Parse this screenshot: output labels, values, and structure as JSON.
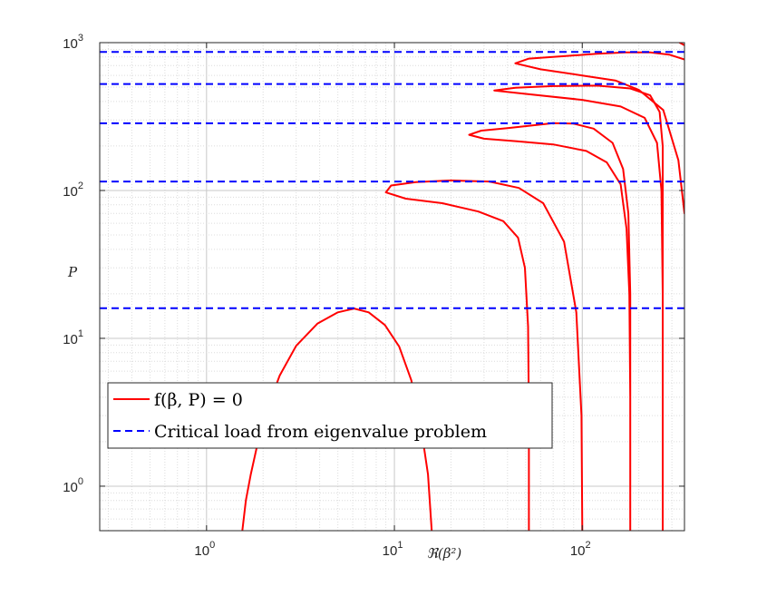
{
  "chart_data": {
    "type": "line",
    "title": "",
    "xlabel": "ℜ(β²)",
    "ylabel": "P",
    "xscale": "log",
    "yscale": "log",
    "xlim": [
      0.27,
      350
    ],
    "ylim": [
      0.5,
      1000
    ],
    "grid": "on (major and minor, dotted)",
    "legend_placement": "lower-left",
    "x_ticks": [
      {
        "base": "10",
        "exp": "0",
        "value": 1
      },
      {
        "base": "10",
        "exp": "1",
        "value": 10
      },
      {
        "base": "10",
        "exp": "2",
        "value": 100
      }
    ],
    "y_ticks": [
      {
        "base": "10",
        "exp": "0",
        "value": 1
      },
      {
        "base": "10",
        "exp": "1",
        "value": 10
      },
      {
        "base": "10",
        "exp": "2",
        "value": 100
      },
      {
        "base": "10",
        "exp": "3",
        "value": 1000
      }
    ],
    "series": [
      {
        "name": "f(β, P) = 0",
        "color": "#ff0000",
        "style": "solid",
        "branches": [
          [
            [
              1.55,
              0.5
            ],
            [
              1.62,
              0.8
            ],
            [
              1.72,
              1.2
            ],
            [
              1.88,
              2.0
            ],
            [
              2.1,
              3.3
            ],
            [
              2.45,
              5.6
            ],
            [
              3.0,
              8.9
            ],
            [
              3.9,
              12.6
            ],
            [
              5.0,
              15.0
            ],
            [
              6.1,
              15.9
            ],
            [
              7.3,
              15.0
            ],
            [
              8.9,
              12.3
            ],
            [
              10.6,
              8.8
            ],
            [
              12.3,
              5.2
            ],
            [
              13.8,
              2.6
            ],
            [
              15.1,
              1.2
            ],
            [
              15.8,
              0.5
            ]
          ],
          [
            [
              52,
              0.5
            ],
            [
              52,
              3
            ],
            [
              51.5,
              12
            ],
            [
              49.5,
              30
            ],
            [
              45.5,
              48
            ],
            [
              38,
              62
            ],
            [
              28,
              72
            ],
            [
              18,
              82
            ],
            [
              11.5,
              88
            ],
            [
              9.0,
              97
            ],
            [
              9.6,
              108
            ],
            [
              13,
              114
            ],
            [
              20,
              117
            ],
            [
              32,
              115
            ],
            [
              46,
              104
            ],
            [
              62,
              82
            ],
            [
              80,
              45
            ],
            [
              93,
              15
            ],
            [
              99,
              3
            ],
            [
              100,
              0.5
            ]
          ],
          [
            [
              180,
              0.5
            ],
            [
              180,
              4
            ],
            [
              178,
              20
            ],
            [
              172,
              55
            ],
            [
              160,
              110
            ],
            [
              135,
              155
            ],
            [
              105,
              185
            ],
            [
              70,
              205
            ],
            [
              45,
              215
            ],
            [
              30,
              224
            ],
            [
              25,
              238
            ],
            [
              29,
              254
            ],
            [
              40,
              264
            ],
            [
              55,
              276
            ],
            [
              70,
              285
            ],
            [
              90,
              283
            ],
            [
              115,
              262
            ],
            [
              145,
              210
            ],
            [
              165,
              140
            ],
            [
              176,
              70
            ],
            [
              180,
              20
            ],
            [
              180,
              0.5
            ]
          ],
          [
            [
              268,
              0.5
            ],
            [
              268,
              20
            ],
            [
              264,
              100
            ],
            [
              250,
              210
            ],
            [
              215,
              310
            ],
            [
              160,
              370
            ],
            [
              100,
              410
            ],
            [
              50,
              450
            ],
            [
              34,
              475
            ],
            [
              44,
              495
            ],
            [
              70,
              508
            ],
            [
              120,
              512
            ],
            [
              180,
              490
            ],
            [
              230,
              440
            ],
            [
              258,
              340
            ],
            [
              268,
              200
            ],
            [
              268,
              20
            ]
          ],
          [
            [
              350,
              70
            ],
            [
              325,
              160
            ],
            [
              270,
              350
            ],
            [
              200,
              480
            ],
            [
              150,
              555
            ],
            [
              100,
              600
            ],
            [
              60,
              660
            ],
            [
              44,
              725
            ],
            [
              52,
              780
            ],
            [
              80,
              810
            ],
            [
              120,
              840
            ],
            [
              170,
              860
            ],
            [
              230,
              858
            ],
            [
              290,
              830
            ],
            [
              350,
              770
            ]
          ],
          [
            [
              330,
              1000
            ],
            [
              350,
              960
            ]
          ]
        ]
      },
      {
        "name": "Critical load from eigenvalue problem",
        "color": "#0000ff",
        "style": "dashed",
        "values": [
          16,
          115,
          285,
          525,
          865
        ]
      }
    ]
  }
}
